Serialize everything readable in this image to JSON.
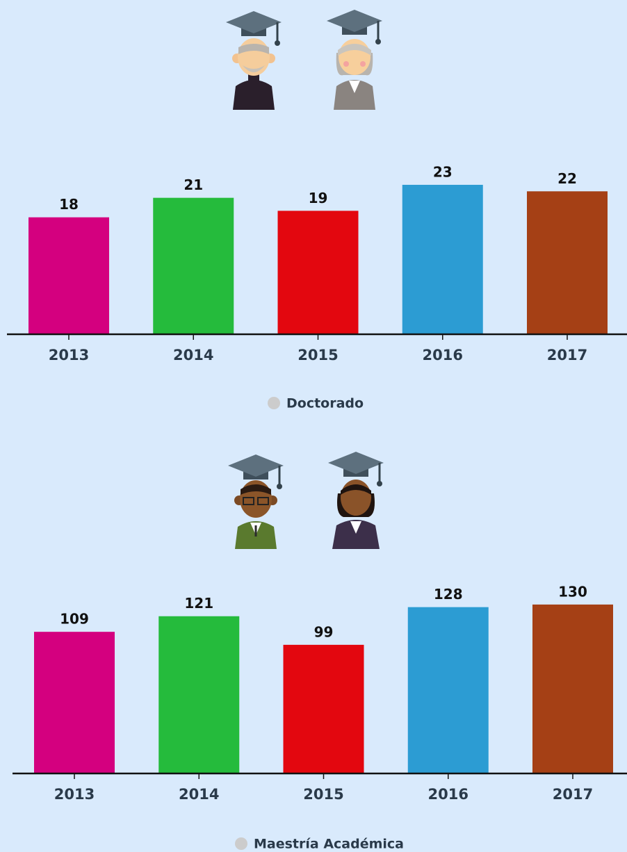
{
  "chart_data": [
    {
      "type": "bar",
      "categories": [
        "2013",
        "2014",
        "2015",
        "2016",
        "2017"
      ],
      "colors": [
        "#d4007f",
        "#25bb3c",
        "#e3070f",
        "#2c9cd3",
        "#a54015"
      ],
      "series": [
        {
          "name": "Doctorado",
          "color": "#cccccc",
          "values": [
            18,
            21,
            19,
            23,
            22
          ]
        }
      ],
      "ylim": [
        0,
        30
      ]
    },
    {
      "type": "bar",
      "categories": [
        "2013",
        "2014",
        "2015",
        "2016",
        "2017"
      ],
      "colors": [
        "#d4007f",
        "#25bb3c",
        "#e3070f",
        "#2c9cd3",
        "#a54015"
      ],
      "series": [
        {
          "name": "Maestría Académica",
          "color": "#cccccc",
          "values": [
            109,
            121,
            99,
            128,
            130
          ]
        }
      ],
      "ylim": [
        0,
        150
      ]
    }
  ]
}
